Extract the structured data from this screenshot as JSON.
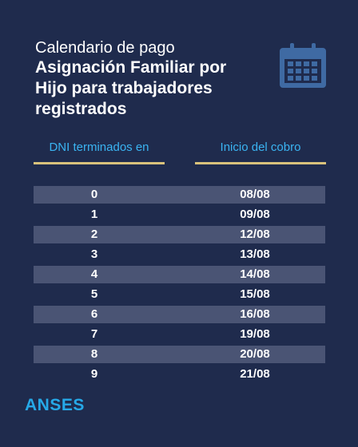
{
  "title": {
    "line1": "Calendario de pago",
    "line2": "Asignación Familiar por",
    "line3": "Hijo para trabajadores",
    "line4": "registrados"
  },
  "header_icon": "calendar-icon",
  "table": {
    "col_dni": "DNI terminados en",
    "col_cobro": "Inicio del cobro",
    "rows": [
      {
        "dni": "0",
        "date": "08/08"
      },
      {
        "dni": "1",
        "date": "09/08"
      },
      {
        "dni": "2",
        "date": "12/08"
      },
      {
        "dni": "3",
        "date": "13/08"
      },
      {
        "dni": "4",
        "date": "14/08"
      },
      {
        "dni": "5",
        "date": "15/08"
      },
      {
        "dni": "6",
        "date": "16/08"
      },
      {
        "dni": "7",
        "date": "19/08"
      },
      {
        "dni": "8",
        "date": "20/08"
      },
      {
        "dni": "9",
        "date": "21/08"
      }
    ]
  },
  "footer": {
    "logo": "ANSES"
  },
  "colors": {
    "background": "#1f2b4d",
    "accent_blue": "#3ab4f2",
    "underline_gold": "#d9c27c",
    "row_shade": "#4a5474",
    "icon": "#3f6aa3"
  }
}
